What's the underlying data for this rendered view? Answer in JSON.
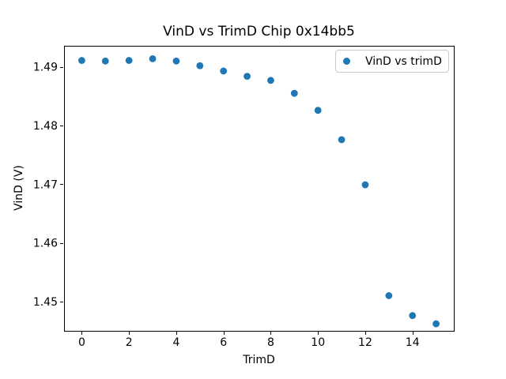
{
  "figure": {
    "background": "#ffffff",
    "text_color": "#000000",
    "spine_color": "#000000",
    "legend_border_color": "#cccccc"
  },
  "chart_data": {
    "type": "scatter",
    "title": "VinD vs TrimD Chip 0x14bb5",
    "xlabel": "TrimD",
    "ylabel": "VinD (V)",
    "legend": {
      "position": "upper right",
      "entries": [
        {
          "label": "VinD vs trimD",
          "marker": "circle",
          "color": "#1f77b4"
        }
      ]
    },
    "x": [
      0,
      1,
      2,
      3,
      4,
      5,
      6,
      7,
      8,
      9,
      10,
      11,
      12,
      13,
      14,
      15
    ],
    "y": [
      1.4911,
      1.491,
      1.4911,
      1.4914,
      1.491,
      1.4902,
      1.4893,
      1.4884,
      1.4877,
      1.4855,
      1.4826,
      1.4776,
      1.4699,
      1.451,
      1.4476,
      1.4462
    ],
    "xlim": [
      -0.75,
      15.75
    ],
    "ylim": [
      1.445,
      1.4936
    ],
    "xticks": [
      0,
      2,
      4,
      6,
      8,
      10,
      12,
      14
    ],
    "yticks": [
      1.45,
      1.46,
      1.47,
      1.48,
      1.49
    ],
    "ytick_decimals": 2,
    "marker_color": "#1f77b4",
    "marker_radius": 4.4,
    "grid": false
  }
}
